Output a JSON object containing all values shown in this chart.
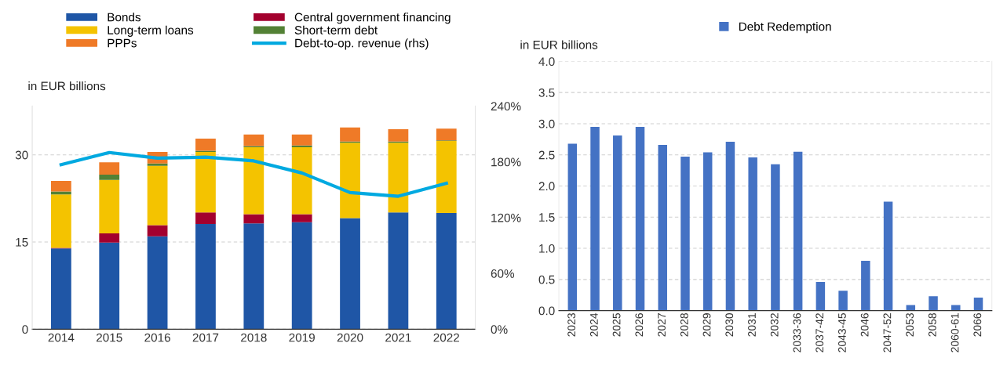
{
  "chart_data": [
    {
      "type": "bar",
      "stacked": true,
      "ylabel": "in EUR billions",
      "categories": [
        "2014",
        "2015",
        "2016",
        "2017",
        "2018",
        "2019",
        "2020",
        "2021",
        "2022"
      ],
      "series": [
        {
          "name": "Bonds",
          "color": "#1f56a6",
          "values": [
            13.9,
            14.9,
            16.0,
            18.1,
            18.2,
            18.4,
            19.1,
            20.1,
            20.0
          ]
        },
        {
          "name": "Central government financing",
          "color": "#a3002e",
          "values": [
            0.1,
            1.6,
            1.9,
            2.0,
            1.6,
            1.4,
            0,
            0,
            0
          ]
        },
        {
          "name": "Long-term loans",
          "color": "#f4c300",
          "values": [
            9.2,
            9.2,
            10.2,
            10.4,
            11.5,
            11.5,
            13.0,
            12.0,
            12.4
          ]
        },
        {
          "name": "Short-term debt",
          "color": "#538135",
          "values": [
            0.5,
            0.9,
            0.4,
            0.2,
            0.2,
            0.3,
            0.2,
            0.2,
            0.1
          ]
        },
        {
          "name": "PPPs",
          "color": "#ef7a27",
          "values": [
            1.8,
            2.1,
            2.0,
            2.1,
            2.0,
            1.9,
            2.4,
            2.1,
            2.0
          ]
        },
        {
          "name": "Debt-to-op. revenue (rhs)",
          "type": "line",
          "axis": "y2",
          "color": "#00a9e0",
          "values": [
            177,
            190,
            184,
            185,
            181,
            168,
            147,
            143,
            157
          ]
        }
      ],
      "ylim": [
        0,
        38.4
      ],
      "yticks": [
        0,
        15,
        30
      ],
      "y2lim": [
        0,
        240
      ],
      "y2ticks": [
        {
          "value": 0,
          "label": "0%"
        },
        {
          "value": 60,
          "label": "60%"
        },
        {
          "value": 120,
          "label": "120%"
        },
        {
          "value": 180,
          "label": "180%"
        },
        {
          "value": 240,
          "label": "240%"
        }
      ],
      "grid": "y",
      "legend": "top",
      "marker": "none",
      "line_style": "solid"
    },
    {
      "type": "bar",
      "ylabel": "in EUR billions",
      "categories": [
        "2023",
        "2024",
        "2025",
        "2026",
        "2027",
        "2028",
        "2029",
        "2030",
        "2031",
        "2032",
        "2033-36",
        "2037-42",
        "2043-45",
        "2046",
        "2047-52",
        "2053",
        "2058",
        "2060-61",
        "2066"
      ],
      "series": [
        {
          "name": "Debt Redemption",
          "color": "#4472c4",
          "values": [
            2.68,
            2.95,
            2.81,
            2.95,
            2.66,
            2.47,
            2.54,
            2.71,
            2.46,
            2.35,
            2.55,
            0.46,
            0.32,
            0.8,
            1.75,
            0.09,
            0.23,
            0.09,
            0.21
          ]
        }
      ],
      "ylim": [
        0,
        4.0
      ],
      "yticks": [
        {
          "value": 0,
          "label": "0.0"
        },
        {
          "value": 0.5,
          "label": "0.5"
        },
        {
          "value": 1.0,
          "label": "1.0"
        },
        {
          "value": 1.5,
          "label": "1.5"
        },
        {
          "value": 2.0,
          "label": "2.0"
        },
        {
          "value": 2.5,
          "label": "2.5"
        },
        {
          "value": 3.0,
          "label": "3.0"
        },
        {
          "value": 3.5,
          "label": "3.5"
        },
        {
          "value": 4.0,
          "label": "4.0"
        }
      ],
      "grid": "y",
      "legend": "top"
    }
  ]
}
